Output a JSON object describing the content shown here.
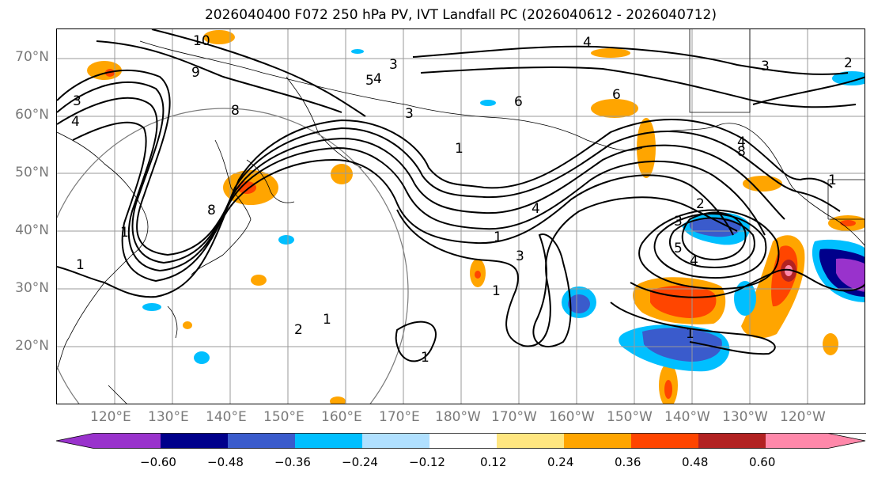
{
  "title": "2026040400 F072 250 hPa PV, IVT Landfall PC (2026040612 - 2026040712)",
  "lat_labels": [
    "70°N",
    "60°N",
    "50°N",
    "40°N",
    "30°N",
    "20°N"
  ],
  "lon_labels": [
    "120°E",
    "130°E",
    "140°E",
    "150°E",
    "160°E",
    "170°E",
    "180°W",
    "170°W",
    "160°W",
    "150°W",
    "140°W",
    "130°W",
    "120°W"
  ],
  "colorbar": {
    "colors": [
      "#9932cc",
      "#00008b",
      "#3a5bcc",
      "#00bfff",
      "#b0e0ff",
      "#ffffff",
      "#ffe680",
      "#ffa500",
      "#ff4500",
      "#b22222",
      "#ff88aa"
    ],
    "ticks": [
      "−0.60",
      "−0.48",
      "−0.36",
      "−0.24",
      "−0.12",
      "0.12",
      "0.24",
      "0.36",
      "0.48",
      "0.60"
    ]
  },
  "contour_labels": [
    "10",
    "9",
    "8",
    "3",
    "4",
    "5",
    "3",
    "3",
    "4",
    "6",
    "4",
    "6",
    "3",
    "2",
    "8",
    "8",
    "4",
    "1",
    "1",
    "1",
    "4",
    "3",
    "1",
    "1",
    "1",
    "2",
    "3",
    "5",
    "4",
    "1",
    "2",
    "1",
    "1"
  ]
}
